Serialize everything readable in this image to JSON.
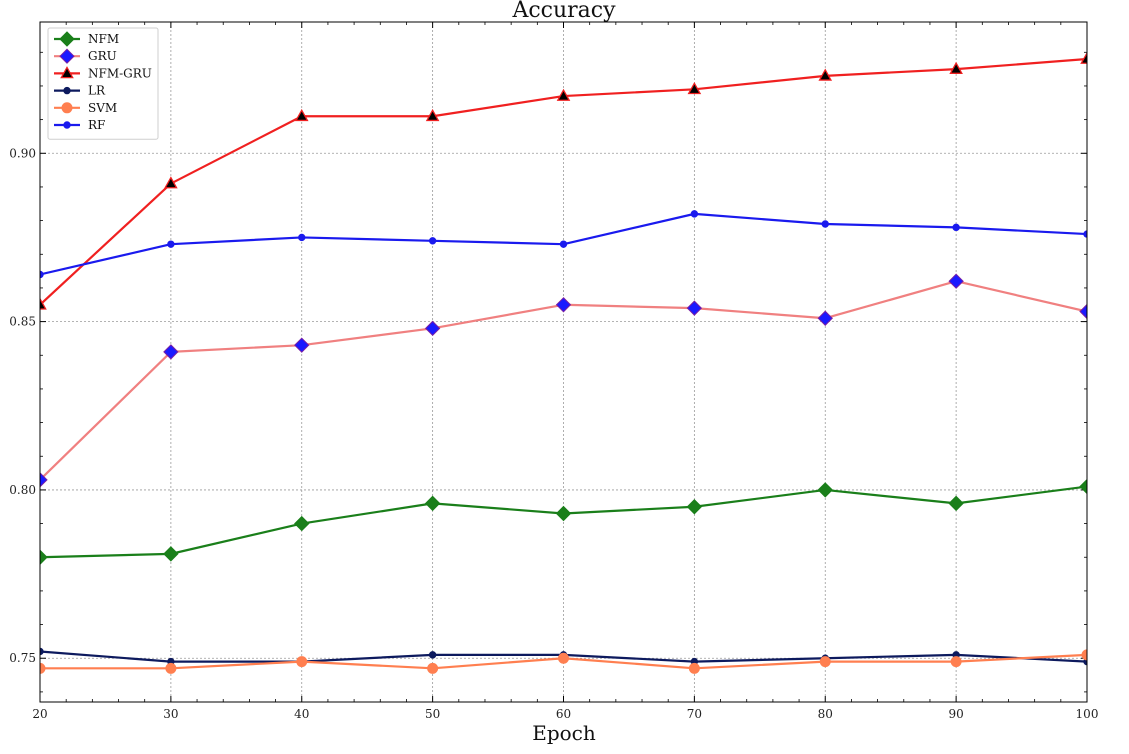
{
  "chart_data": {
    "type": "line",
    "title": "Accuracy",
    "xlabel": "Epoch",
    "ylabel": "",
    "xlim": [
      20,
      100
    ],
    "ylim": [
      0.737,
      0.939
    ],
    "x": [
      20,
      30,
      40,
      50,
      60,
      70,
      80,
      90,
      100
    ],
    "xticks": [
      "20",
      "30",
      "40",
      "50",
      "60",
      "70",
      "80",
      "90",
      "100"
    ],
    "yticks": [
      {
        "value": 0.75,
        "label": "0.75"
      },
      {
        "value": 0.8,
        "label": "0.80"
      },
      {
        "value": 0.85,
        "label": "0.85"
      },
      {
        "value": 0.9,
        "label": "0.90"
      }
    ],
    "grid": true,
    "legend_position": "top-left",
    "series": [
      {
        "name": "NFM",
        "line_color": "#1a7f1a",
        "marker": "diamond",
        "marker_fill": "#1a7f1a",
        "marker_edge": "#1a7f1a",
        "values": [
          0.78,
          0.781,
          0.79,
          0.796,
          0.793,
          0.795,
          0.8,
          0.796,
          0.801
        ]
      },
      {
        "name": "GRU",
        "line_color": "#f08080",
        "marker": "diamond",
        "marker_fill": "#1a1aff",
        "marker_edge": "#7a1fa2",
        "values": [
          0.803,
          0.841,
          0.843,
          0.848,
          0.855,
          0.854,
          0.851,
          0.862,
          0.853
        ]
      },
      {
        "name": "NFM-GRU",
        "line_color": "#f02020",
        "marker": "triangle",
        "marker_fill": "#000000",
        "marker_edge": "#f02020",
        "values": [
          0.855,
          0.891,
          0.911,
          0.911,
          0.917,
          0.919,
          0.923,
          0.925,
          0.928
        ]
      },
      {
        "name": "LR",
        "line_color": "#0d1a5e",
        "marker": "circle",
        "marker_fill": "#0d1a5e",
        "marker_edge": "#0d1a5e",
        "values": [
          0.752,
          0.749,
          0.749,
          0.751,
          0.751,
          0.749,
          0.75,
          0.751,
          0.749
        ]
      },
      {
        "name": "SVM",
        "line_color": "#ff7f50",
        "marker": "circle",
        "marker_fill": "#ff7f50",
        "marker_edge": "#ff7f50",
        "values": [
          0.747,
          0.747,
          0.749,
          0.747,
          0.75,
          0.747,
          0.749,
          0.749,
          0.751
        ]
      },
      {
        "name": "RF",
        "line_color": "#1a1aee",
        "marker": "circle",
        "marker_fill": "#1a1aee",
        "marker_edge": "#1a1aee",
        "values": [
          0.864,
          0.873,
          0.875,
          0.874,
          0.873,
          0.882,
          0.879,
          0.878,
          0.876
        ]
      }
    ]
  }
}
